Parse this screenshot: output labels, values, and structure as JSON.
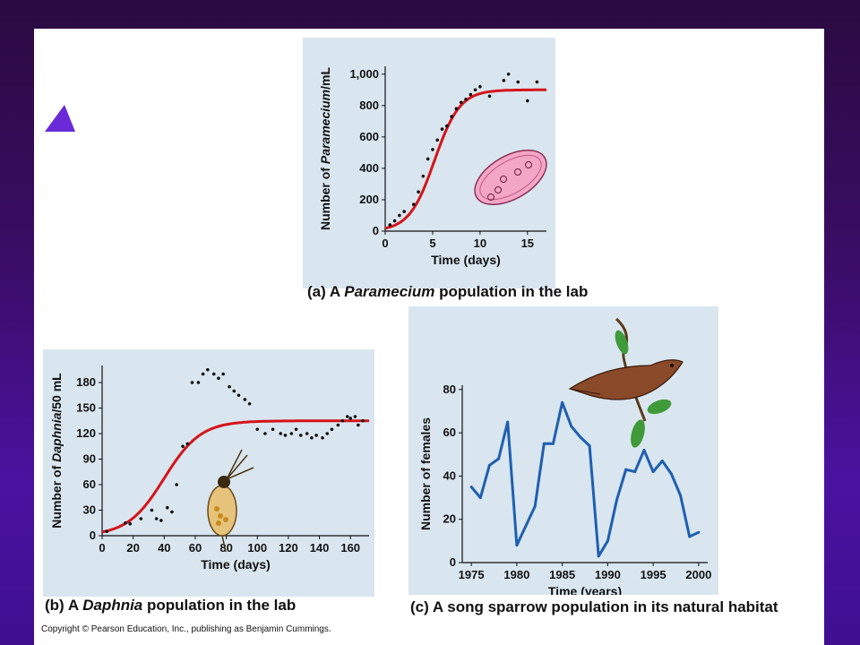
{
  "colors": {
    "plot_bg": "#d9e6ef",
    "curve_red": "#d4141a",
    "line_blue": "#1f5fb0",
    "dot": "#111111"
  },
  "icons": {
    "a": "paramecium-illustration",
    "b": "daphnia-illustration",
    "c": "song-sparrow-illustration"
  },
  "captions": {
    "a": {
      "letter": "(a)",
      "pre": "A",
      "italic": "Paramecium",
      "post": "population in the lab"
    },
    "b": {
      "letter": "(b)",
      "pre": "A",
      "italic": "Daphnia",
      "post": "population in the lab"
    },
    "c": {
      "letter": "(c)",
      "text": "A song sparrow population in its natural habitat"
    }
  },
  "copyright": "Copyright © Pearson Education, Inc., publishing as Benjamin Cummings.",
  "chart_data": [
    {
      "type": "scatter",
      "xlabel": "Time (days)",
      "ylabel_pre": "Number of ",
      "ylabel_italic": "Paramecium",
      "ylabel_post": "/mL",
      "xlim": [
        0,
        17
      ],
      "ylim": [
        0,
        1050
      ],
      "xticks": [
        0,
        5,
        10,
        15
      ],
      "yticks": [
        0,
        200,
        400,
        600,
        800,
        1000
      ],
      "ytick_labels": [
        "0",
        "200",
        "400",
        "600",
        "800",
        "1,000"
      ],
      "points": [
        [
          0.5,
          40
        ],
        [
          1,
          65
        ],
        [
          1.5,
          100
        ],
        [
          2,
          125
        ],
        [
          3,
          170
        ],
        [
          3.5,
          250
        ],
        [
          4,
          350
        ],
        [
          4.5,
          460
        ],
        [
          5,
          520
        ],
        [
          5.5,
          580
        ],
        [
          6,
          650
        ],
        [
          6.5,
          670
        ],
        [
          7,
          730
        ],
        [
          7.5,
          780
        ],
        [
          8,
          820
        ],
        [
          8.5,
          840
        ],
        [
          9,
          870
        ],
        [
          9.5,
          900
        ],
        [
          10,
          920
        ],
        [
          11,
          860
        ],
        [
          12.5,
          960
        ],
        [
          13,
          1000
        ],
        [
          14,
          950
        ],
        [
          15,
          830
        ],
        [
          16,
          950
        ]
      ],
      "curve": {
        "model": "logistic",
        "K": 900,
        "r": 0.75,
        "t0": 5.2
      },
      "series": [
        {
          "values": []
        }
      ]
    },
    {
      "type": "scatter",
      "xlabel": "Time (days)",
      "ylabel_pre": "Number of ",
      "ylabel_italic": "Daphnia",
      "ylabel_post": "/50 mL",
      "xlim": [
        0,
        172
      ],
      "ylim": [
        0,
        200
      ],
      "xticks": [
        0,
        20,
        40,
        60,
        80,
        100,
        120,
        140,
        160
      ],
      "yticks": [
        0,
        30,
        60,
        90,
        120,
        150,
        180
      ],
      "points": [
        [
          3,
          5
        ],
        [
          15,
          15
        ],
        [
          18,
          14
        ],
        [
          25,
          20
        ],
        [
          32,
          30
        ],
        [
          35,
          20
        ],
        [
          38,
          18
        ],
        [
          42,
          33
        ],
        [
          45,
          28
        ],
        [
          48,
          60
        ],
        [
          52,
          105
        ],
        [
          55,
          108
        ],
        [
          58,
          180
        ],
        [
          62,
          180
        ],
        [
          65,
          190
        ],
        [
          68,
          195
        ],
        [
          72,
          190
        ],
        [
          75,
          185
        ],
        [
          78,
          190
        ],
        [
          82,
          175
        ],
        [
          85,
          170
        ],
        [
          88,
          165
        ],
        [
          92,
          160
        ],
        [
          95,
          155
        ],
        [
          100,
          125
        ],
        [
          105,
          120
        ],
        [
          110,
          125
        ],
        [
          115,
          120
        ],
        [
          118,
          118
        ],
        [
          122,
          120
        ],
        [
          125,
          125
        ],
        [
          128,
          118
        ],
        [
          132,
          120
        ],
        [
          135,
          115
        ],
        [
          138,
          118
        ],
        [
          142,
          115
        ],
        [
          145,
          120
        ],
        [
          148,
          125
        ],
        [
          152,
          130
        ],
        [
          155,
          135
        ],
        [
          158,
          140
        ],
        [
          160,
          138
        ],
        [
          163,
          140
        ],
        [
          165,
          130
        ],
        [
          168,
          135
        ]
      ],
      "curve": {
        "model": "logistic",
        "K": 135,
        "r": 0.085,
        "t0": 40
      },
      "series": [
        {
          "values": []
        }
      ]
    },
    {
      "type": "line",
      "xlabel": "Time (years)",
      "ylabel": "Number of females",
      "xlim": [
        1974,
        2001
      ],
      "ylim": [
        0,
        82
      ],
      "xticks": [
        1975,
        1980,
        1985,
        1990,
        1995,
        2000
      ],
      "yticks": [
        0,
        20,
        40,
        60,
        80
      ],
      "x": [
        1975,
        1976,
        1977,
        1978,
        1979,
        1980,
        1981,
        1982,
        1983,
        1984,
        1985,
        1986,
        1987,
        1988,
        1989,
        1990,
        1991,
        1992,
        1993,
        1994,
        1995,
        1996,
        1997,
        1998,
        1999,
        2000
      ],
      "series": [
        {
          "values": [
            35,
            30,
            45,
            48,
            65,
            8,
            17,
            26,
            55,
            55,
            74,
            63,
            58,
            54,
            3,
            10,
            29,
            43,
            42,
            52,
            42,
            47,
            41,
            31,
            12,
            14
          ]
        }
      ]
    }
  ]
}
